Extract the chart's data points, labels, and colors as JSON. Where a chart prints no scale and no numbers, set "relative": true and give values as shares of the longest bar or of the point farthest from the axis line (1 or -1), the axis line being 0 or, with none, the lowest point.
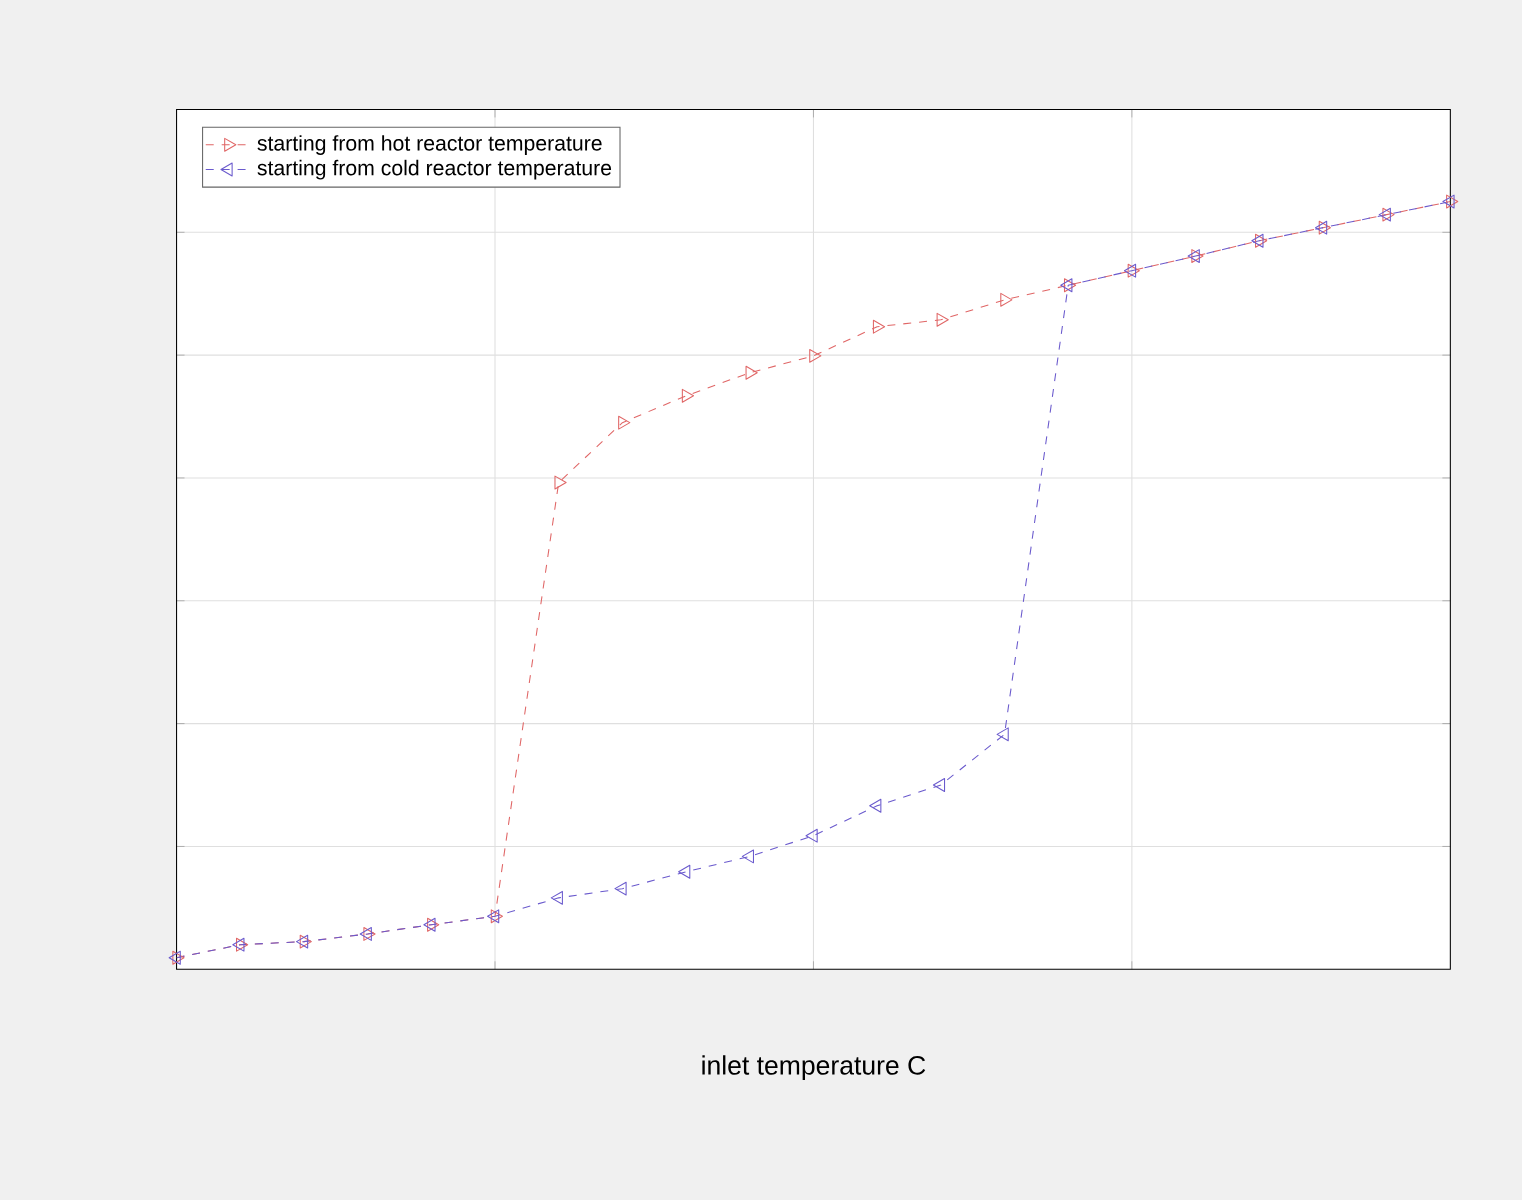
{
  "chart_data": {
    "type": "line",
    "xlabel": "inlet temperature C",
    "relative": true,
    "categories": [
      null,
      null,
      null,
      null,
      null,
      null,
      null,
      null,
      null,
      null,
      null,
      null,
      null,
      null,
      null,
      null,
      null,
      null,
      null,
      null,
      null
    ],
    "series": [
      {
        "name": "starting from hot reactor temperature",
        "color": "#e06666",
        "values": [
          0.015,
          0.032,
          0.036,
          0.046,
          0.058,
          0.069,
          0.634,
          0.712,
          0.747,
          0.777,
          0.799,
          0.837,
          0.846,
          0.872,
          0.891,
          0.91,
          0.929,
          0.949,
          0.966,
          0.983,
          1
        ]
      },
      {
        "name": "starting from cold reactor temperature",
        "color": "#6a5acd",
        "values": [
          0.015,
          0.032,
          0.036,
          0.046,
          0.058,
          0.069,
          0.093,
          0.105,
          0.127,
          0.147,
          0.174,
          0.213,
          0.24,
          0.306,
          0.891,
          0.91,
          0.929,
          0.949,
          0.966,
          0.983,
          1
        ]
      }
    ],
    "grid": true,
    "legend": "top left",
    "marker": "triangle",
    "line_style": "dashed"
  }
}
